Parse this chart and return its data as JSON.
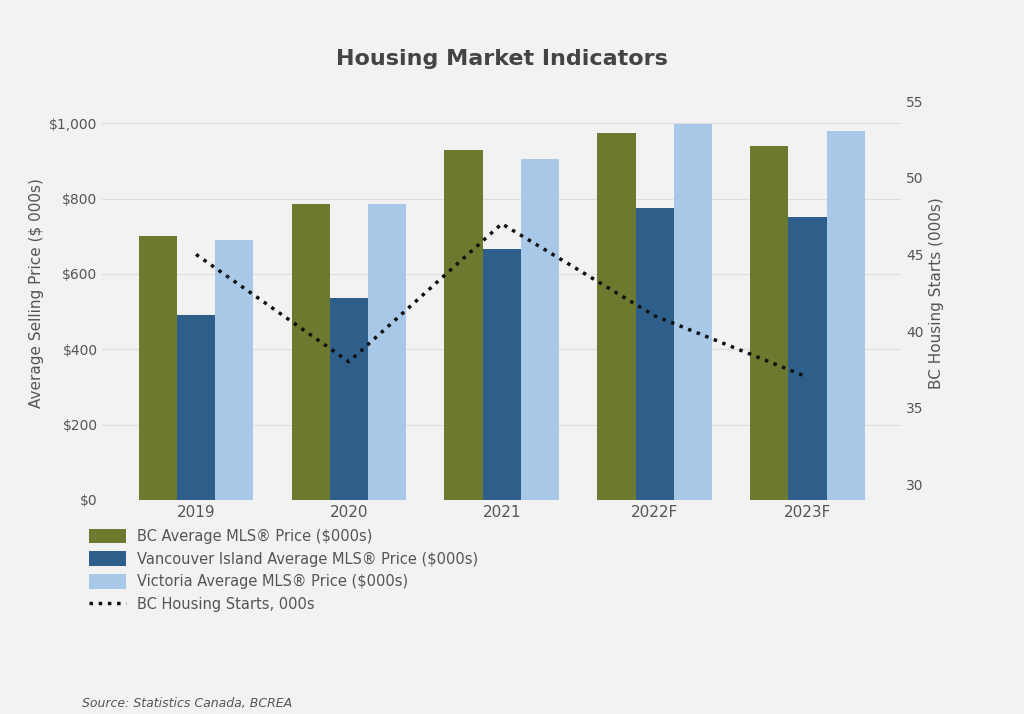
{
  "title": "Housing Market Indicators",
  "categories": [
    "2019",
    "2020",
    "2021",
    "2022F",
    "2023F"
  ],
  "bc_avg_price": [
    700,
    785,
    930,
    975,
    940
  ],
  "vi_avg_price": [
    490,
    535,
    665,
    775,
    750
  ],
  "victoria_avg_price": [
    690,
    785,
    905,
    998,
    980
  ],
  "bc_housing_starts": [
    45,
    38,
    47,
    41,
    37
  ],
  "bar_colors": {
    "bc": "#6b7a2e",
    "vi": "#2e5f8a",
    "victoria": "#a8c8e8"
  },
  "line_color": "#111111",
  "ylabel_left": "Average Selling Price ($ 000s)",
  "ylabel_right": "BC Housing Starts (000s)",
  "ylim_left": [
    0,
    1100
  ],
  "ylim_right": [
    29,
    56
  ],
  "yticks_left": [
    0,
    200,
    400,
    600,
    800,
    1000
  ],
  "yticks_right": [
    30,
    35,
    40,
    45,
    50,
    55
  ],
  "legend_labels": [
    "BC Average MLS® Price ($000s)",
    "Vancouver Island Average MLS® Price ($000s)",
    "Victoria Average MLS® Price ($000s)",
    "BC Housing Starts, 000s"
  ],
  "source_text": "Source: Statistics Canada, BCREA",
  "background_color": "#f2f2f2",
  "title_color": "#444444",
  "axis_label_color": "#555555",
  "tick_color": "#555555",
  "grid_color": "#dddddd"
}
